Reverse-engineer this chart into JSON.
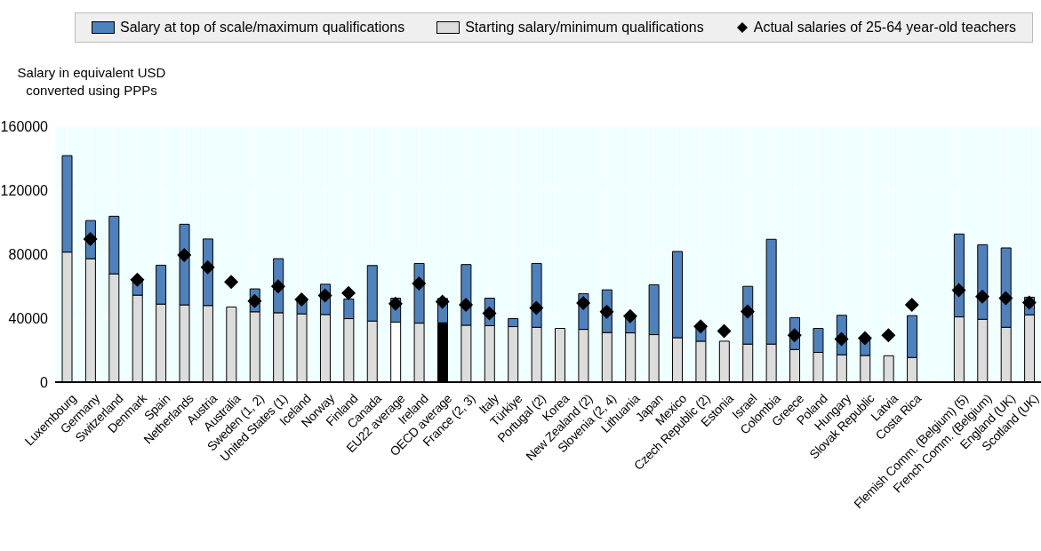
{
  "chart_data": {
    "type": "bar",
    "stacked": true,
    "ylabel": "Salary in equivalent USD converted using PPPs",
    "categories": [
      "Luxembourg",
      "Germany",
      "Switzerland",
      "Denmark",
      "Spain",
      "Netherlands",
      "Austria",
      "Australia",
      "Sweden (1, 2)",
      "United States (1)",
      "Iceland",
      "Norway",
      "Finland",
      "Canada",
      "EU22 average",
      "Ireland",
      "OECD average",
      "France (2, 3)",
      "Italy",
      "Türkiye",
      "Portugal (2)",
      "Korea",
      "New Zealand (2)",
      "Slovenia (2, 4)",
      "Lithuania",
      "Japan",
      "Mexico",
      "Czech Republic (2)",
      "Estonia",
      "Israel",
      "Colombia",
      "Greece",
      "Poland",
      "Hungary",
      "Slovak Republic",
      "Latvia",
      "Costa Rica",
      null,
      "Flemish Comm. (Belgium) (5)",
      "French Comm. (Belgium)",
      "England (UK)",
      "Scotland (UK)"
    ],
    "series": [
      {
        "name": "Starting salary/minimum qualifications",
        "color": "#dcdcdc",
        "colors": [
          "#dcdcdc",
          "#dcdcdc",
          "#dcdcdc",
          "#dcdcdc",
          "#dcdcdc",
          "#dcdcdc",
          "#dcdcdc",
          "#dcdcdc",
          "#dcdcdc",
          "#dcdcdc",
          "#dcdcdc",
          "#dcdcdc",
          "#dcdcdc",
          "#dcdcdc",
          "#ffffff",
          "#dcdcdc",
          "#000000",
          "#dcdcdc",
          "#dcdcdc",
          "#dcdcdc",
          "#dcdcdc",
          "#dcdcdc",
          "#dcdcdc",
          "#dcdcdc",
          "#dcdcdc",
          "#dcdcdc",
          "#dcdcdc",
          "#dcdcdc",
          "#dcdcdc",
          "#dcdcdc",
          "#dcdcdc",
          "#dcdcdc",
          "#dcdcdc",
          "#dcdcdc",
          "#dcdcdc",
          "#dcdcdc",
          "#dcdcdc",
          "#dcdcdc",
          "#dcdcdc",
          "#dcdcdc",
          "#dcdcdc",
          "#dcdcdc"
        ],
        "values": [
          81300,
          77200,
          67700,
          54400,
          48800,
          48300,
          47900,
          47000,
          44000,
          43400,
          42700,
          42300,
          39700,
          38200,
          37500,
          36900,
          37100,
          35600,
          35300,
          34700,
          34300,
          33600,
          33000,
          31000,
          30800,
          29700,
          27800,
          25600,
          25600,
          23800,
          23800,
          20400,
          18600,
          17100,
          16700,
          16500,
          15400,
          null,
          40800,
          39300,
          34300,
          42100
        ]
      },
      {
        "name": "Salary at top of scale/maximum qualifications",
        "color": "#4f81bd",
        "values": [
          60300,
          23800,
          36000,
          10000,
          24300,
          50400,
          41600,
          null,
          14300,
          33800,
          9300,
          18900,
          12300,
          34700,
          15000,
          37300,
          15200,
          37900,
          17200,
          5000,
          39900,
          null,
          22300,
          26700,
          10000,
          31200,
          53900,
          8700,
          null,
          36100,
          65500,
          19900,
          15000,
          24700,
          11300,
          null,
          26200,
          null,
          51800,
          46600,
          49600,
          11000
        ]
      },
      {
        "name": "Actual salaries of 25-64 year-old teachers",
        "type": "scatter",
        "color": "#000000",
        "marker": "diamond",
        "values": [
          null,
          89500,
          null,
          64000,
          null,
          79400,
          71800,
          62700,
          50700,
          59800,
          51600,
          54200,
          55700,
          null,
          49000,
          61600,
          50300,
          48300,
          43100,
          null,
          46400,
          null,
          49400,
          44000,
          41200,
          null,
          null,
          34900,
          31900,
          44200,
          null,
          29300,
          null,
          26900,
          27500,
          29300,
          48300,
          null,
          57500,
          53500,
          52500,
          49700
        ]
      }
    ],
    "ylim": [
      0,
      160000
    ],
    "yticks": [
      0,
      40000,
      80000,
      120000,
      160000
    ],
    "grid": true,
    "legend": "top"
  }
}
